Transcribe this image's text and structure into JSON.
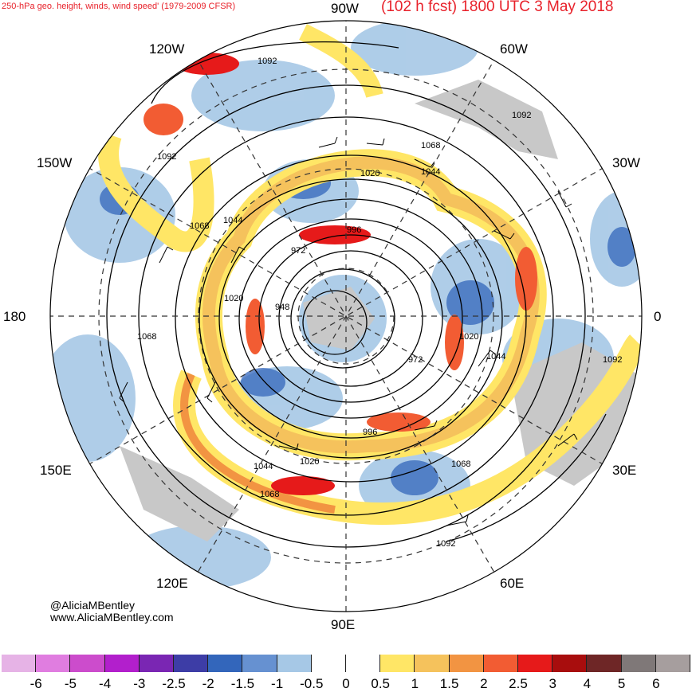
{
  "header": {
    "left_title": "250-hPa geo. height, winds, wind speed' (1979-2009 CFSR)",
    "right_title": "(102 h fcst) 1800 UTC 3 May 2018"
  },
  "longitude_labels": [
    "90W",
    "60W",
    "30W",
    "0",
    "30E",
    "60E",
    "90E",
    "120E",
    "150E",
    "180",
    "150W",
    "120W"
  ],
  "contour_labels": [
    "1092",
    "1092",
    "1092",
    "1092",
    "1092",
    "1068",
    "1068",
    "1068",
    "1068",
    "1068",
    "1044",
    "1044",
    "1044",
    "1044",
    "1020",
    "1020",
    "1020",
    "1020",
    "996",
    "996",
    "972",
    "972",
    "948"
  ],
  "credits": {
    "handle": "@AliciaMBentley",
    "website": "www.AliciaMBentley.com"
  },
  "colorbar": {
    "colors": [
      "#e6b3e6",
      "#e07de0",
      "#cc4ccc",
      "#b21fcc",
      "#7a26b3",
      "#3d3da6",
      "#3366bb",
      "#6691d1",
      "#a6c8e6",
      "#ffffff",
      "#ffffff",
      "#ffe666",
      "#f5c25c",
      "#f29442",
      "#f25c33",
      "#e61a1a",
      "#a80d0d",
      "#6e2626",
      "#7f7878",
      "#a69e9e"
    ],
    "ticks": [
      "-6",
      "-5",
      "-4",
      "-3",
      "-2.5",
      "-2",
      "-1.5",
      "-1",
      "-0.5",
      "0",
      "0.5",
      "1",
      "1.5",
      "2",
      "2.5",
      "3",
      "4",
      "5",
      "6"
    ]
  }
}
